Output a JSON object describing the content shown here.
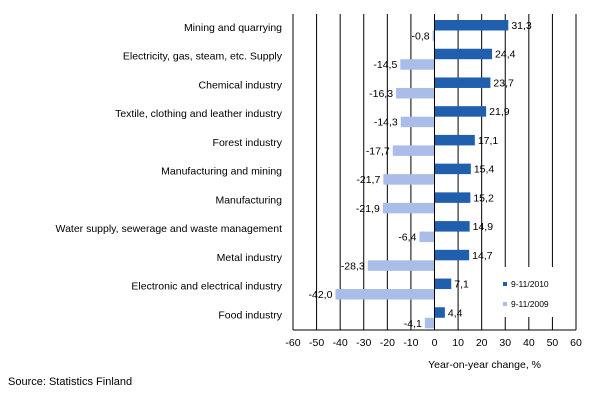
{
  "chart_data": {
    "type": "bar",
    "orientation": "horizontal",
    "categories": [
      "Mining and quarrying",
      "Electricity, gas, steam, etc. Supply",
      "Chemical industry",
      "Textile, clothing and leather industry",
      "Forest industry",
      "Manufacturing and mining",
      "Manufacturing",
      "Water supply, sewerage and waste management",
      "Metal industry",
      "Electronic and electrical industry",
      "Food industry"
    ],
    "series": [
      {
        "name": "9-11/2010",
        "color": "#1f5fae",
        "values": [
          31.3,
          24.4,
          23.7,
          21.9,
          17.1,
          15.4,
          15.2,
          14.9,
          14.7,
          7.1,
          4.4
        ],
        "labels": [
          "31,3",
          "24,4",
          "23,7",
          "21,9",
          "17,1",
          "15,4",
          "15,2",
          "14,9",
          "14,7",
          "7,1",
          "4,4"
        ]
      },
      {
        "name": "9-11/2009",
        "color": "#a9bde8",
        "values": [
          -0.8,
          -14.5,
          -16.3,
          -14.3,
          -17.7,
          -21.7,
          -21.9,
          -6.4,
          -28.3,
          -42.0,
          -4.1
        ],
        "labels": [
          "-0,8",
          "-14,5",
          "-16,3",
          "-14,3",
          "-17,7",
          "-21,7",
          "-21,9",
          "-6,4",
          "-28,3",
          "-42,0",
          "-4,1"
        ]
      }
    ],
    "xlim": [
      -60,
      60
    ],
    "xticks": [
      -60,
      -50,
      -40,
      -30,
      -20,
      -10,
      0,
      10,
      20,
      30,
      40,
      50,
      60
    ],
    "xlabel": "Year-on-year change, %",
    "grid": "vertical",
    "legend_position": "bottom-right"
  },
  "source": "Source: Statistics Finland"
}
